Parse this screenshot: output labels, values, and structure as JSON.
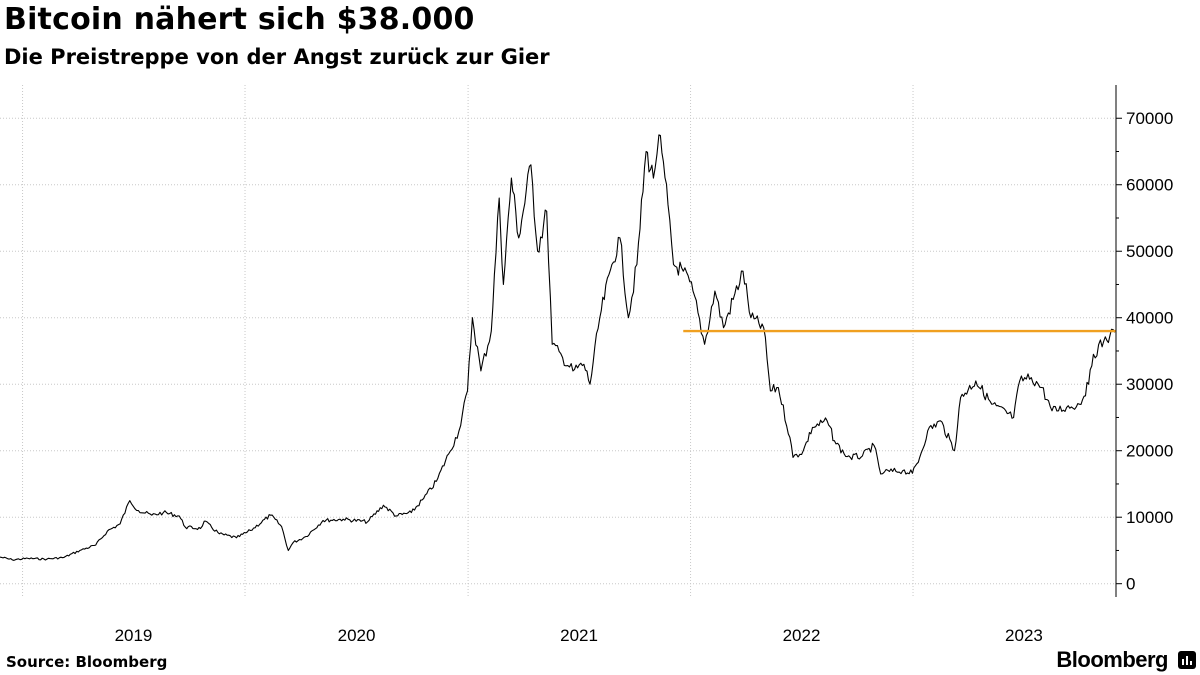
{
  "header": {
    "title": "Bitcoin nähert sich $38.000",
    "subtitle": "Die Preistreppe von der Angst zurück zur Gier"
  },
  "footer": {
    "source": "Source: Bloomberg",
    "brand": "Bloomberg",
    "brand_icon": "bloomberg-terminal-icon"
  },
  "colors": {
    "price_line": "#000000",
    "highlight_line": "#f0a020",
    "grid": "#c8c8c8",
    "axis": "#000000"
  },
  "chart_data": {
    "type": "line",
    "title": "Bitcoin nähert sich $38.000",
    "subtitle": "Die Preistreppe von der Angst zurück zur Gier",
    "xlabel": "",
    "ylabel": "",
    "x_range": [
      "2018-11-25",
      "2023-11-30"
    ],
    "x_tick_labels": [
      "2019",
      "2020",
      "2021",
      "2022",
      "2023"
    ],
    "ylim": [
      -2000,
      75000
    ],
    "y_ticks": [
      0,
      10000,
      20000,
      30000,
      40000,
      50000,
      60000,
      70000
    ],
    "y_axis_position": "right",
    "grid": true,
    "legend": "none",
    "series": [
      {
        "x": [
          "2018-11-25",
          "2018-12-15",
          "2019-01-10",
          "2019-02-10",
          "2019-03-10",
          "2019-04-05",
          "2019-05-01",
          "2019-05-20",
          "2019-06-10",
          "2019-06-26",
          "2019-07-10",
          "2019-08-01",
          "2019-08-20",
          "2019-09-15",
          "2019-09-25",
          "2019-10-20",
          "2019-10-26",
          "2019-11-20",
          "2019-12-18",
          "2020-01-10",
          "2020-02-12",
          "2020-03-01",
          "2020-03-12",
          "2020-03-20",
          "2020-04-10",
          "2020-05-08",
          "2020-06-10",
          "2020-07-20",
          "2020-08-15",
          "2020-09-05",
          "2020-09-30",
          "2020-10-20",
          "2020-11-10",
          "2020-11-30",
          "2020-12-17",
          "2020-12-31",
          "2021-01-08",
          "2021-01-22",
          "2021-02-08",
          "2021-02-21",
          "2021-02-28",
          "2021-03-13",
          "2021-03-25",
          "2021-04-14",
          "2021-04-25",
          "2021-05-10",
          "2021-05-19",
          "2021-06-05",
          "2021-06-22",
          "2021-07-10",
          "2021-07-20",
          "2021-08-05",
          "2021-08-25",
          "2021-09-07",
          "2021-09-21",
          "2021-10-05",
          "2021-10-20",
          "2021-11-01",
          "2021-11-10",
          "2021-11-25",
          "2021-12-04",
          "2021-12-20",
          "2022-01-05",
          "2022-01-24",
          "2022-02-10",
          "2022-02-24",
          "2022-03-28",
          "2022-04-10",
          "2022-05-01",
          "2022-05-12",
          "2022-05-25",
          "2022-06-13",
          "2022-06-18",
          "2022-07-05",
          "2022-07-20",
          "2022-08-13",
          "2022-08-25",
          "2022-09-10",
          "2022-09-20",
          "2022-10-10",
          "2022-10-29",
          "2022-11-09",
          "2022-11-15",
          "2022-12-15",
          "2022-12-31",
          "2023-01-12",
          "2023-01-25",
          "2023-02-15",
          "2023-03-10",
          "2023-03-20",
          "2023-04-14",
          "2023-05-10",
          "2023-06-15",
          "2023-06-25",
          "2023-07-14",
          "2023-07-31",
          "2023-08-17",
          "2023-09-10",
          "2023-10-01",
          "2023-10-16",
          "2023-10-24",
          "2023-11-10",
          "2023-11-20",
          "2023-11-28"
        ],
        "y": [
          4000,
          3600,
          3800,
          3700,
          3950,
          5000,
          5800,
          7900,
          9000,
          12500,
          11000,
          10300,
          10700,
          10200,
          8500,
          8300,
          9400,
          7500,
          6900,
          8000,
          10300,
          8600,
          5000,
          6200,
          7100,
          9500,
          9700,
          9300,
          11800,
          10200,
          10700,
          12800,
          15400,
          19500,
          23000,
          29000,
          40000,
          32000,
          38000,
          58000,
          45000,
          61000,
          52000,
          63000,
          50000,
          56000,
          36000,
          34000,
          32000,
          33000,
          30000,
          40000,
          48000,
          52000,
          40000,
          48000,
          65000,
          61000,
          67500,
          57000,
          48000,
          47000,
          44000,
          36000,
          44000,
          38500,
          47000,
          40000,
          38500,
          29000,
          29500,
          22000,
          19000,
          20000,
          23500,
          24500,
          21500,
          19500,
          19000,
          19200,
          20800,
          16500,
          16800,
          17000,
          16600,
          19000,
          23000,
          24500,
          20000,
          28000,
          30500,
          27000,
          25000,
          30500,
          31000,
          29500,
          26000,
          26500,
          27000,
          30000,
          34500,
          36500,
          37300,
          37800
        ]
      }
    ],
    "annotations": [
      {
        "type": "horizontal-line",
        "y": 38000,
        "x_start": "2021-12-20",
        "x_end": "2023-11-30",
        "color": "#f0a020"
      }
    ]
  }
}
